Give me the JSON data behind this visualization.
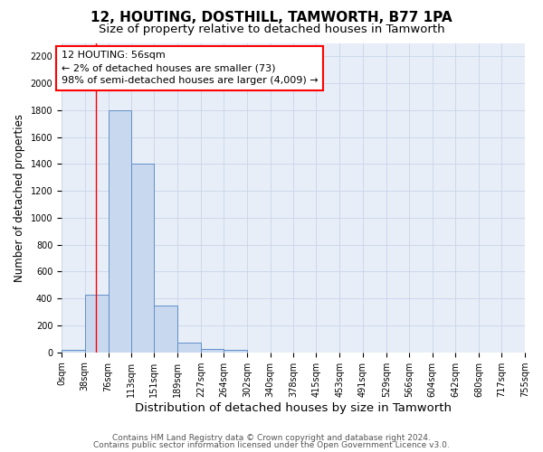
{
  "title": "12, HOUTING, DOSTHILL, TAMWORTH, B77 1PA",
  "subtitle": "Size of property relative to detached houses in Tamworth",
  "xlabel": "Distribution of detached houses by size in Tamworth",
  "ylabel": "Number of detached properties",
  "bin_labels": [
    "0sqm",
    "38sqm",
    "76sqm",
    "113sqm",
    "151sqm",
    "189sqm",
    "227sqm",
    "264sqm",
    "302sqm",
    "340sqm",
    "378sqm",
    "415sqm",
    "453sqm",
    "491sqm",
    "529sqm",
    "566sqm",
    "604sqm",
    "642sqm",
    "680sqm",
    "717sqm",
    "755sqm"
  ],
  "bin_edges": [
    0,
    38,
    76,
    113,
    151,
    189,
    227,
    264,
    302,
    340,
    378,
    415,
    453,
    491,
    529,
    566,
    604,
    642,
    680,
    717,
    755
  ],
  "bar_heights": [
    15,
    430,
    1800,
    1400,
    350,
    75,
    25,
    15,
    0,
    0,
    0,
    0,
    0,
    0,
    0,
    0,
    0,
    0,
    0,
    0
  ],
  "bar_facecolor": "#c8d8ee",
  "bar_edgecolor": "#6090c8",
  "red_line_x": 56,
  "annotation_line1": "12 HOUTING: 56sqm",
  "annotation_line2": "← 2% of detached houses are smaller (73)",
  "annotation_line3": "98% of semi-detached houses are larger (4,009) →",
  "ylim": [
    0,
    2300
  ],
  "yticks": [
    0,
    200,
    400,
    600,
    800,
    1000,
    1200,
    1400,
    1600,
    1800,
    2000,
    2200
  ],
  "grid_color": "#c8d4e8",
  "background_color": "#e8eef8",
  "footer_line1": "Contains HM Land Registry data © Crown copyright and database right 2024.",
  "footer_line2": "Contains public sector information licensed under the Open Government Licence v3.0.",
  "title_fontsize": 11,
  "subtitle_fontsize": 9.5,
  "xlabel_fontsize": 9.5,
  "ylabel_fontsize": 8.5,
  "tick_fontsize": 7,
  "annotation_fontsize": 8,
  "footer_fontsize": 6.5
}
